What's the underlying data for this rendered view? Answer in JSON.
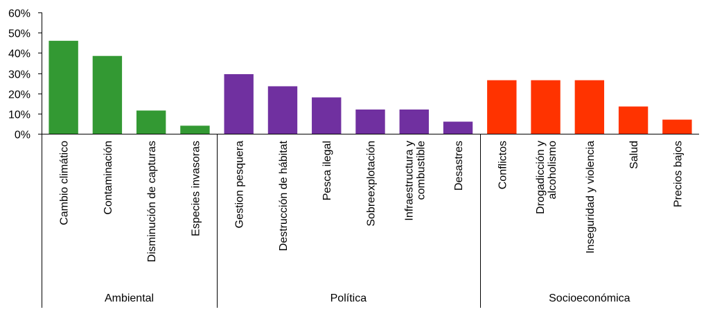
{
  "chart_data": {
    "type": "bar",
    "title": "",
    "xlabel": "",
    "ylabel": "",
    "ylim": [
      0,
      60
    ],
    "y_ticks": [
      "0%",
      "10%",
      "20%",
      "30%",
      "40%",
      "50%",
      "60%"
    ],
    "y_tick_values": [
      0,
      10,
      20,
      30,
      40,
      50,
      60
    ],
    "grid": false,
    "legend": "none",
    "groups": [
      {
        "name": "Ambiental",
        "color": "#339933",
        "categories": [
          {
            "lines": [
              "Cambio climático"
            ],
            "value": 46
          },
          {
            "lines": [
              "Contaminación"
            ],
            "value": 38.5
          },
          {
            "lines": [
              "Disminución de capturas"
            ],
            "value": 11.5
          },
          {
            "lines": [
              "Especies invasoras"
            ],
            "value": 4
          }
        ]
      },
      {
        "name": "Política",
        "color": "#7030A0",
        "categories": [
          {
            "lines": [
              "Gestion pesquera"
            ],
            "value": 29.5
          },
          {
            "lines": [
              "Destrucción de hábitat"
            ],
            "value": 23.5
          },
          {
            "lines": [
              "Pesca ilegal"
            ],
            "value": 18
          },
          {
            "lines": [
              "Sobreexplotación"
            ],
            "value": 12
          },
          {
            "lines": [
              "Infraestructura y",
              "combustible"
            ],
            "value": 12
          },
          {
            "lines": [
              "Desastres"
            ],
            "value": 6
          }
        ]
      },
      {
        "name": "Socioeconómica",
        "color": "#FF3300",
        "categories": [
          {
            "lines": [
              "Conflictos"
            ],
            "value": 26.5
          },
          {
            "lines": [
              "Drogadicción y",
              "alcoholismo"
            ],
            "value": 26.5
          },
          {
            "lines": [
              "Inseguridad y violencia"
            ],
            "value": 26.5
          },
          {
            "lines": [
              "Salud"
            ],
            "value": 13.5
          },
          {
            "lines": [
              "Precios bajos"
            ],
            "value": 7
          }
        ]
      }
    ]
  }
}
